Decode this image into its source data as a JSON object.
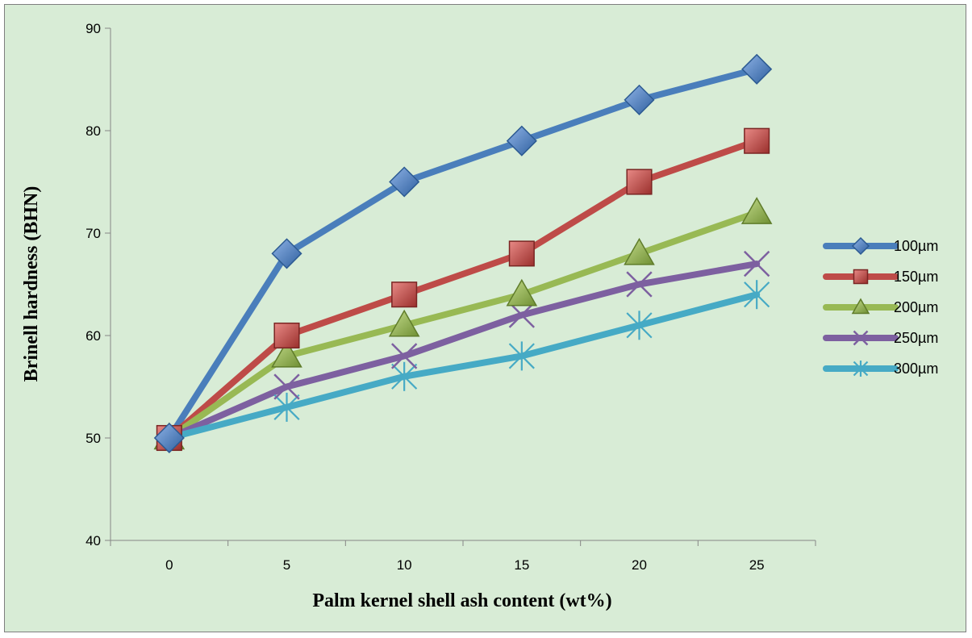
{
  "chart_data": {
    "type": "line",
    "title": "",
    "xlabel": "Palm kernel shell ash content (wt%)",
    "ylabel": "Brinell hardness (BHN)",
    "categories": [
      "0",
      "5",
      "10",
      "15",
      "20",
      "25"
    ],
    "ylim": [
      40,
      90
    ],
    "yticks": [
      "40",
      "50",
      "60",
      "70",
      "80",
      "90"
    ],
    "grid": false,
    "legend_position": "right",
    "series": [
      {
        "name": "100µm",
        "values": [
          50,
          68,
          75,
          79,
          83,
          86
        ],
        "color": "#4a7ebb",
        "marker": "diamond"
      },
      {
        "name": "150µm",
        "values": [
          50,
          60,
          64,
          68,
          75,
          79
        ],
        "color": "#be4b48",
        "marker": "square"
      },
      {
        "name": "200µm",
        "values": [
          50,
          58,
          61,
          64,
          68,
          72
        ],
        "color": "#98b954",
        "marker": "triangle"
      },
      {
        "name": "250µm",
        "values": [
          50,
          55,
          58,
          62,
          65,
          67
        ],
        "color": "#7d60a0",
        "marker": "x"
      },
      {
        "name": "300µm",
        "values": [
          50,
          53,
          56,
          58,
          61,
          64
        ],
        "color": "#46aac5",
        "marker": "star"
      }
    ]
  }
}
